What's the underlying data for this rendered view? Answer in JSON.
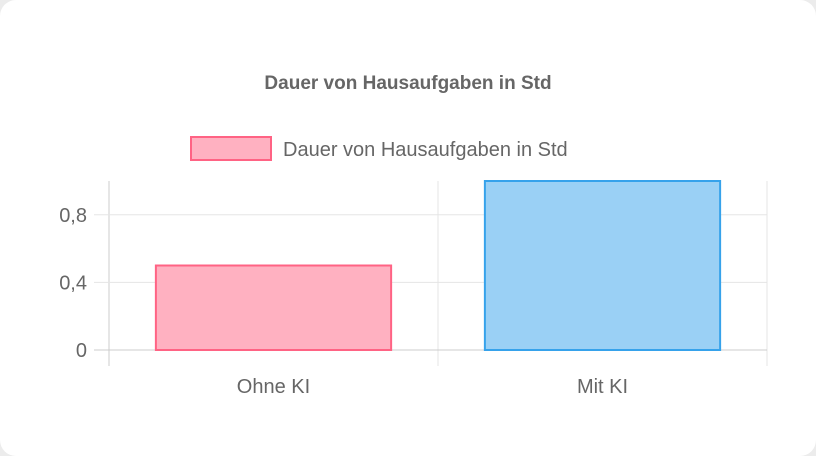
{
  "chart_data": {
    "type": "bar",
    "title": "Dauer von Hausaufgaben in Std",
    "categories": [
      "Ohne KI",
      "Mit KI"
    ],
    "series": [
      {
        "name": "Dauer von Hausaufgaben in Std",
        "values": [
          0.5,
          1.0
        ],
        "fill": [
          "#ffb1c1",
          "#9ad0f5"
        ],
        "stroke": [
          "#ff6384",
          "#36a2eb"
        ]
      }
    ],
    "yticks": [
      0,
      0.4,
      0.8
    ],
    "ytick_labels": [
      "0",
      "0,4",
      "0,8"
    ],
    "ylim": [
      0,
      1.0
    ],
    "xlabel": "",
    "ylabel": "",
    "legend": "top",
    "grid": true
  }
}
